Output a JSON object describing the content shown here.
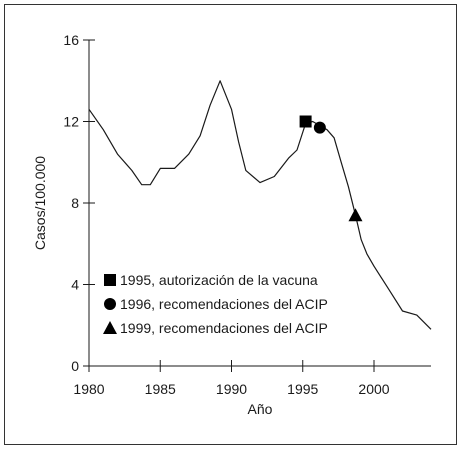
{
  "chart_data": {
    "type": "line",
    "xlabel": "Año",
    "ylabel": "Casos/100.000",
    "xlim": [
      1980,
      2004
    ],
    "ylim": [
      0,
      16
    ],
    "x_ticks": [
      1980,
      1985,
      1990,
      1995,
      2000
    ],
    "x_tick_labels": [
      "1980",
      "1985",
      "1990",
      "1995",
      "2000"
    ],
    "y_ticks": [
      0,
      4,
      8,
      12,
      16
    ],
    "y_tick_labels": [
      "0",
      "4",
      "8",
      "12",
      "16"
    ],
    "grid": false,
    "legend_position": "bottom-left",
    "line_color": "#1a1a1a",
    "series": [
      {
        "x": [
          1980,
          1981,
          1982,
          1983,
          1983.7,
          1984.3,
          1985,
          1986,
          1987,
          1987.8,
          1988.5,
          1989.2,
          1990,
          1990.5,
          1991,
          1992,
          1993,
          1994,
          1994.6,
          1995.2,
          1995.7,
          1996.2,
          1996.7,
          1997.2,
          1997.7,
          1998.2,
          1998.7,
          1999.1,
          1999.5,
          2000,
          2001,
          2002,
          2003,
          2004
        ],
        "y": [
          12.6,
          11.6,
          10.4,
          9.6,
          8.9,
          8.9,
          9.7,
          9.7,
          10.4,
          11.3,
          12.8,
          14.0,
          12.6,
          11.0,
          9.6,
          9.0,
          9.3,
          10.2,
          10.6,
          11.9,
          12.0,
          11.8,
          11.6,
          11.2,
          10.0,
          8.8,
          7.4,
          6.2,
          5.5,
          4.9,
          3.8,
          2.7,
          2.5,
          1.8
        ]
      }
    ],
    "markers": [
      {
        "shape": "square",
        "x": 1995.2,
        "y": 12.0,
        "label": "1995, autorización de la vacuna"
      },
      {
        "shape": "circle",
        "x": 1996.2,
        "y": 11.7,
        "label": "1996, recomendaciones del ACIP"
      },
      {
        "shape": "triangle",
        "x": 1998.7,
        "y": 7.4,
        "label": "1999, recomendaciones del ACIP"
      }
    ]
  }
}
